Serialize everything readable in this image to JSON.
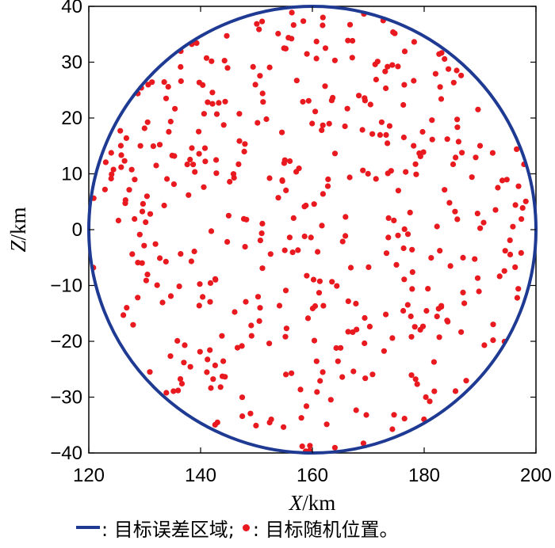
{
  "chart_data": {
    "type": "scatter",
    "xlabel_var": "X",
    "xlabel_unit": "/km",
    "ylabel_var": "Z",
    "ylabel_unit": "/km",
    "xlim": [
      120,
      200
    ],
    "ylim": [
      -40,
      40
    ],
    "x_ticks": [
      120,
      140,
      160,
      180,
      200
    ],
    "y_ticks": [
      40,
      30,
      20,
      10,
      0,
      -10,
      -20,
      -30,
      -40
    ],
    "grid": false,
    "colors": {
      "circle": "#1f3a93",
      "points": "#e8191f"
    },
    "circle": {
      "center": [
        160,
        0
      ],
      "radius": 40
    },
    "num_points": 450,
    "legend": {
      "circle_label": ": 目标误差区域;",
      "points_label": ": 目标随机位置。"
    }
  }
}
